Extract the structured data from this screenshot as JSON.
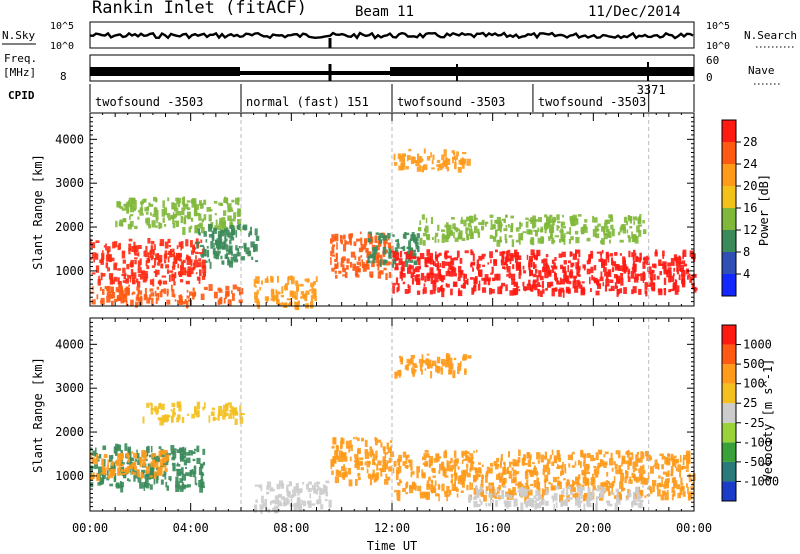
{
  "header": {
    "station": "Rankin Inlet (fitACF)",
    "beam": "Beam 11",
    "date": "11/Dec/2014"
  },
  "strips": {
    "nsky": {
      "label": "N.Sky",
      "tick_hi": "10^5",
      "tick_lo": "10^0"
    },
    "nsearch": {
      "label": "N.Search",
      "tick_hi": "10^5",
      "tick_lo": "10^0"
    },
    "freq": {
      "label_top": "Freq.",
      "label_unit": "[MHz]",
      "tick_hi": "",
      "tick_lo": "8"
    },
    "nave": {
      "label": "Nave",
      "tick_hi": "60",
      "tick_lo": "0"
    },
    "cpid": {
      "label": "CPID",
      "segments": [
        {
          "start": 0,
          "end": 6,
          "name": "twofsound -3503"
        },
        {
          "start": 6,
          "end": 12,
          "name": "normal (fast) 151"
        },
        {
          "start": 12,
          "end": 17.6,
          "name": "twofsound -3503"
        },
        {
          "start": 17.6,
          "end": 22.2,
          "name": "twofsound -3503"
        },
        {
          "start": 22.2,
          "end": 24,
          "name": "3371"
        }
      ]
    }
  },
  "chart_data": [
    {
      "type": "heatmap",
      "panel": "power",
      "ylabel": "Slant Range [km]",
      "xlim": [
        0,
        24
      ],
      "ylim": [
        200,
        4600
      ],
      "yticks": [
        "1000",
        "2000",
        "3000",
        "4000"
      ],
      "colorbar": {
        "label": "Power [dB]",
        "ticks": [
          "4",
          "8",
          "12",
          "16",
          "20",
          "24",
          "28"
        ],
        "colors": [
          "#1228ff",
          "#2f4fb4",
          "#3b8a5a",
          "#7fb83a",
          "#f2c21a",
          "#ff9a1a",
          "#ff5a12",
          "#ff1a12"
        ]
      },
      "bands": [
        {
          "t0": 0,
          "t1": 4.5,
          "r0": 750,
          "r1": 1750,
          "color": "#ff2a12"
        },
        {
          "t0": 0,
          "t1": 6,
          "r0": 300,
          "r1": 700,
          "color": "#ff5a12"
        },
        {
          "t0": 1,
          "t1": 6,
          "r0": 2000,
          "r1": 2700,
          "color": "#7fb83a"
        },
        {
          "t0": 4.2,
          "t1": 6.6,
          "r0": 1200,
          "r1": 2100,
          "color": "#3b8a5a"
        },
        {
          "t0": 6.5,
          "t1": 9,
          "r0": 250,
          "r1": 900,
          "color": "#ff9a1a"
        },
        {
          "t0": 9.5,
          "t1": 12,
          "r0": 900,
          "r1": 1900,
          "color": "#ff5a12"
        },
        {
          "t0": 11,
          "t1": 13,
          "r0": 1200,
          "r1": 1900,
          "color": "#3b8a5a"
        },
        {
          "t0": 12,
          "t1": 24,
          "r0": 550,
          "r1": 1500,
          "color": "#ff1a12"
        },
        {
          "t0": 12,
          "t1": 15,
          "r0": 3350,
          "r1": 3800,
          "color": "#ff9a1a"
        },
        {
          "t0": 13,
          "t1": 22,
          "r0": 1700,
          "r1": 2300,
          "color": "#7fb83a"
        }
      ]
    },
    {
      "type": "heatmap",
      "panel": "velocity",
      "xlabel": "Time UT",
      "ylabel": "Slant Range [km]",
      "xlim": [
        0,
        24
      ],
      "ylim": [
        200,
        4600
      ],
      "xticks": [
        "00:00",
        "04:00",
        "08:00",
        "12:00",
        "16:00",
        "20:00",
        "00:00"
      ],
      "yticks": [
        "1000",
        "2000",
        "3000",
        "4000"
      ],
      "colorbar": {
        "label": "Velocity [m s^-1]",
        "ticks": [
          "1000",
          "500",
          "100",
          "25",
          "-25",
          "-100",
          "-500",
          "-1000"
        ],
        "colors": [
          "#1a3cc8",
          "#2a7a7a",
          "#3aa03a",
          "#9ad23a",
          "#cccccc",
          "#f4c020",
          "#ff9a1a",
          "#ff5a12",
          "#ff1a12"
        ]
      },
      "bands": [
        {
          "t0": 0,
          "t1": 4.5,
          "r0": 750,
          "r1": 1750,
          "color": "#3a8a5a"
        },
        {
          "t0": 0,
          "t1": 3,
          "r0": 1000,
          "r1": 1600,
          "color": "#ff9a1a"
        },
        {
          "t0": 2,
          "t1": 6,
          "r0": 2300,
          "r1": 2700,
          "color": "#f4c020"
        },
        {
          "t0": 6.5,
          "t1": 9.5,
          "r0": 250,
          "r1": 900,
          "color": "#cccccc"
        },
        {
          "t0": 9.5,
          "t1": 12,
          "r0": 900,
          "r1": 1900,
          "color": "#ff9a1a"
        },
        {
          "t0": 12,
          "t1": 24,
          "r0": 550,
          "r1": 1600,
          "color": "#ff9a1a"
        },
        {
          "t0": 15,
          "t1": 22,
          "r0": 350,
          "r1": 800,
          "color": "#cccccc"
        },
        {
          "t0": 12,
          "t1": 15,
          "r0": 3350,
          "r1": 3800,
          "color": "#ff9a1a"
        }
      ]
    }
  ]
}
